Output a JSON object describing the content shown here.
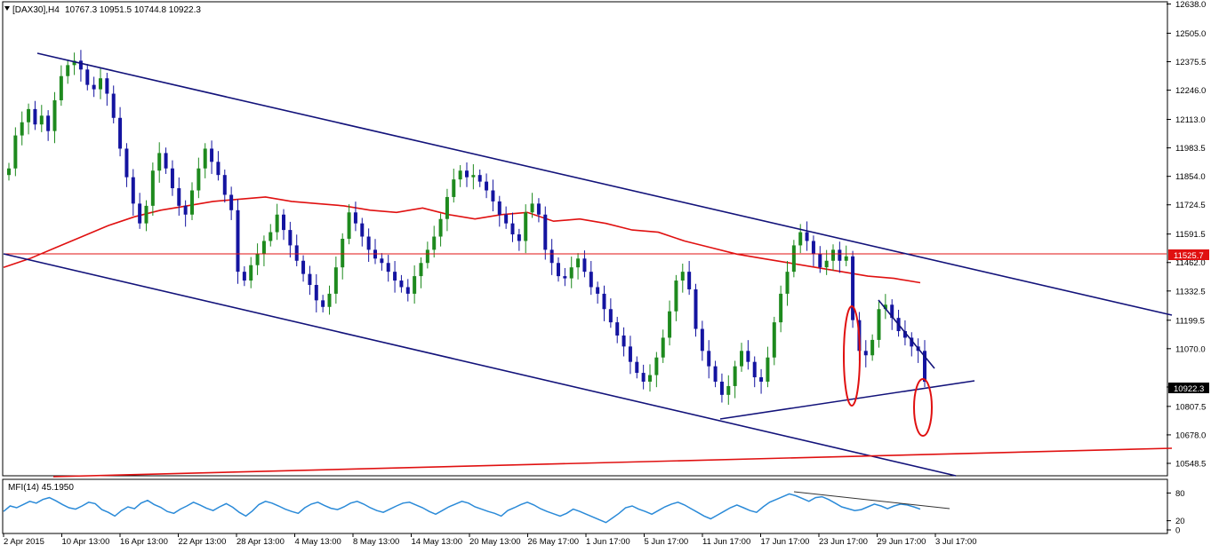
{
  "header": {
    "symbol_label": "[DAX30],H4",
    "ohlc_label": "10767.3 10951.5 10744.8 10922.3",
    "indicator_label": "MFI(14) 45.1950"
  },
  "colors": {
    "bull": "#1e8a1e",
    "bear": "#1414a0",
    "trend": "#12127a",
    "ma": "#e01010",
    "mfi": "#2a8ad8",
    "price_tag_bg": "#e01010"
  },
  "chart_data": [
    {
      "type": "candlestick",
      "title": "[DAX30],H4",
      "ylim": [
        10500,
        12640
      ],
      "y_ticks": [
        "12638.0",
        "12505.0",
        "12375.5",
        "12246.0",
        "12113.0",
        "11983.5",
        "11854.0",
        "11724.5",
        "11591.5",
        "11462.0",
        "11332.5",
        "11199.5",
        "11070.0",
        "10807.5",
        "10678.0",
        "10548.5"
      ],
      "x_ticks": [
        "2 Apr 2015",
        "10 Apr 13:00",
        "16 Apr 13:00",
        "22 Apr 13:00",
        "28 Apr 13:00",
        "4 May 13:00",
        "8 May 13:00",
        "14 May 13:00",
        "20 May 13:00",
        "26 May 17:00",
        "1 Jun 17:00",
        "5 Jun 17:00",
        "11 Jun 17:00",
        "17 Jun 17:00",
        "23 Jun 17:00",
        "29 Jun 17:00",
        "3 Jul 17:00"
      ],
      "current_price": "10922.3",
      "horizontal_level": "11525.7",
      "close_series": [
        11890,
        12040,
        12100,
        12160,
        12090,
        12130,
        12060,
        12200,
        12310,
        12360,
        12380,
        12340,
        12270,
        12250,
        12300,
        12230,
        12120,
        11980,
        11850,
        11730,
        11640,
        11720,
        11880,
        11960,
        11890,
        11800,
        11720,
        11680,
        11790,
        11890,
        11980,
        11920,
        11860,
        11770,
        11700,
        11420,
        11380,
        11450,
        11500,
        11560,
        11600,
        11680,
        11610,
        11540,
        11470,
        11410,
        11360,
        11290,
        11260,
        11320,
        11440,
        11570,
        11690,
        11640,
        11580,
        11520,
        11480,
        11460,
        11420,
        11380,
        11350,
        11320,
        11400,
        11460,
        11520,
        11580,
        11660,
        11760,
        11840,
        11880,
        11850,
        11860,
        11830,
        11790,
        11740,
        11680,
        11640,
        11590,
        11560,
        11690,
        11730,
        11680,
        11520,
        11460,
        11400,
        11390,
        11440,
        11480,
        11420,
        11350,
        11320,
        11250,
        11190,
        11130,
        11080,
        11010,
        10960,
        10920,
        10950,
        11030,
        11120,
        11240,
        11380,
        11420,
        11340,
        11160,
        11060,
        10990,
        10920,
        10860,
        10900,
        10990,
        11060,
        11010,
        10940,
        10920,
        11030,
        11190,
        11320,
        11420,
        11540,
        11600,
        11560,
        11500,
        11440,
        11470,
        11520,
        11470,
        11490,
        11200,
        11060,
        11040,
        11110,
        11250,
        11270,
        11210,
        11150,
        11120,
        11080,
        11060,
        10920
      ],
      "ma_series": [
        11440,
        11480,
        11530,
        11580,
        11630,
        11670,
        11700,
        11720,
        11740,
        11750,
        11760,
        11740,
        11730,
        11720,
        11700,
        11690,
        11710,
        11680,
        11660,
        11680,
        11690,
        11650,
        11660,
        11640,
        11610,
        11600,
        11560,
        11530,
        11500,
        11480,
        11460,
        11440,
        11420,
        11400,
        11390,
        11370
      ],
      "mfi_series": [
        40,
        52,
        48,
        55,
        62,
        58,
        66,
        70,
        63,
        55,
        48,
        45,
        52,
        60,
        57,
        44,
        38,
        30,
        42,
        50,
        46,
        58,
        64,
        55,
        49,
        40,
        36,
        45,
        52,
        60,
        54,
        47,
        42,
        50,
        57,
        49,
        38,
        30,
        41,
        55,
        62,
        58,
        52,
        45,
        40,
        36,
        48,
        56,
        60,
        53,
        47,
        44,
        50,
        58,
        62,
        56,
        48,
        42,
        38,
        45,
        52,
        58,
        60,
        54,
        48,
        40,
        34,
        42,
        50,
        56,
        62,
        58,
        50,
        45,
        40,
        36,
        30,
        42,
        48,
        55,
        60,
        54,
        46,
        40,
        35,
        30,
        36,
        45,
        40,
        34,
        28,
        22,
        16,
        26,
        36,
        48,
        52,
        45,
        40,
        34,
        42,
        50,
        56,
        60,
        54,
        46,
        38,
        30,
        24,
        32,
        40,
        48,
        54,
        48,
        42,
        38,
        50,
        60,
        66,
        72,
        78,
        74,
        68,
        62,
        70,
        72,
        66,
        58,
        50,
        46,
        42,
        44,
        50,
        56,
        52,
        46,
        52,
        56,
        54,
        50,
        45
      ],
      "mfi_ylim": [
        0,
        100
      ],
      "mfi_ticks": [
        "80",
        "20",
        "0"
      ]
    }
  ]
}
